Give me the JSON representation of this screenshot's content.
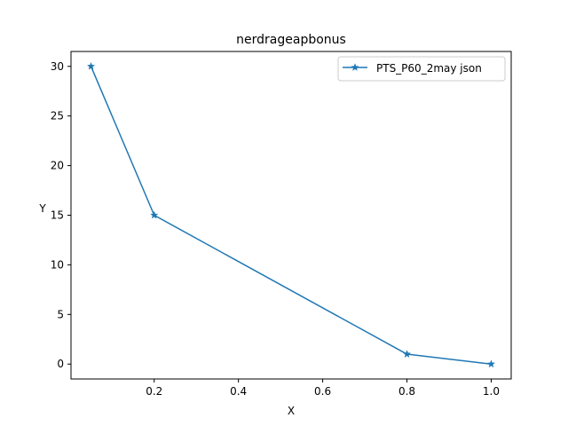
{
  "chart_data": {
    "type": "line",
    "title": "nerdrageapbonus",
    "xlabel": "X",
    "ylabel": "Y",
    "xlim": [
      0.0025,
      1.0475
    ],
    "ylim": [
      -1.5,
      31.5
    ],
    "x_ticks": [
      0.2,
      0.4,
      0.6,
      0.8,
      1.0
    ],
    "x_tick_labels": [
      "0.2",
      "0.4",
      "0.6",
      "0.8",
      "1.0"
    ],
    "y_ticks": [
      0,
      5,
      10,
      15,
      20,
      25,
      30
    ],
    "y_tick_labels": [
      "0",
      "5",
      "10",
      "15",
      "20",
      "25",
      "30"
    ],
    "grid": false,
    "legend_position": "top-right",
    "series": [
      {
        "name": "PTS_P60_2may json",
        "x": [
          0.05,
          0.2,
          0.8,
          1.0
        ],
        "y": [
          30,
          15,
          1,
          0
        ],
        "marker": "star",
        "color": "#1f77b4"
      }
    ]
  }
}
